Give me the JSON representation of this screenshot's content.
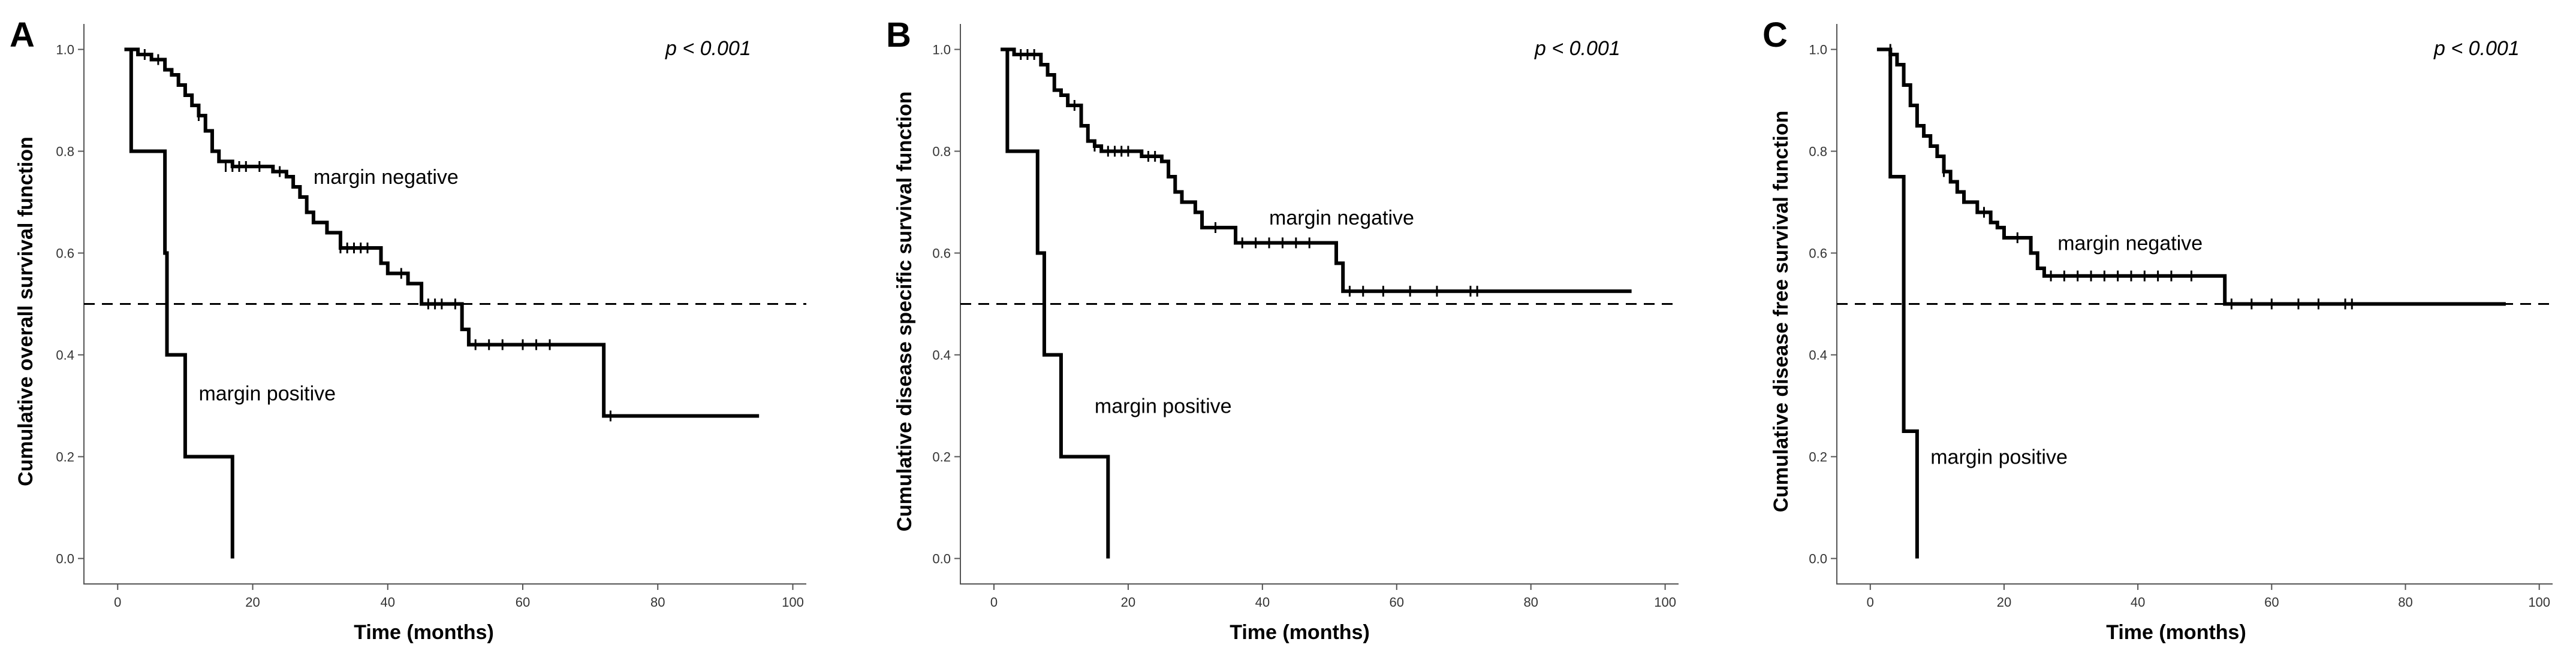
{
  "chart_data": [
    {
      "type": "line",
      "panel": "A",
      "title": "",
      "xlabel": "Time (months)",
      "ylabel": "Cumulative overall survival function",
      "xlim": [
        -5,
        102
      ],
      "ylim": [
        -0.05,
        1.05
      ],
      "xticks": [
        0,
        20,
        40,
        60,
        80,
        100
      ],
      "yticks": [
        0.0,
        0.2,
        0.4,
        0.6,
        0.8,
        1.0
      ],
      "reference_line": 0.5,
      "p_value": "p < 0.001",
      "annotations": [
        {
          "text": "margin negative",
          "x": 29,
          "y": 0.75
        },
        {
          "text": "margin positive",
          "x": 12,
          "y": 0.325
        }
      ],
      "series": [
        {
          "name": "margin negative",
          "steps": [
            [
              1,
              1.0
            ],
            [
              3,
              0.99
            ],
            [
              5,
              0.98
            ],
            [
              7,
              0.96
            ],
            [
              8,
              0.95
            ],
            [
              9,
              0.93
            ],
            [
              10,
              0.91
            ],
            [
              11,
              0.89
            ],
            [
              12,
              0.87
            ],
            [
              13,
              0.84
            ],
            [
              14,
              0.8
            ],
            [
              15,
              0.78
            ],
            [
              17,
              0.77
            ],
            [
              23,
              0.76
            ],
            [
              25,
              0.75
            ],
            [
              26,
              0.73
            ],
            [
              27,
              0.71
            ],
            [
              28,
              0.68
            ],
            [
              29,
              0.66
            ],
            [
              31,
              0.64
            ],
            [
              33,
              0.61
            ],
            [
              39,
              0.58
            ],
            [
              40,
              0.56
            ],
            [
              43,
              0.54
            ],
            [
              45,
              0.5
            ],
            [
              51,
              0.45
            ],
            [
              52,
              0.42
            ],
            [
              72,
              0.28
            ],
            [
              95,
              0.28
            ]
          ],
          "censored": [
            [
              4,
              0.99
            ],
            [
              6,
              0.98
            ],
            [
              12,
              0.87
            ],
            [
              16,
              0.77
            ],
            [
              17,
              0.77
            ],
            [
              18,
              0.77
            ],
            [
              19,
              0.77
            ],
            [
              21,
              0.77
            ],
            [
              24,
              0.76
            ],
            [
              33,
              0.61
            ],
            [
              34,
              0.61
            ],
            [
              35,
              0.61
            ],
            [
              36,
              0.61
            ],
            [
              37,
              0.61
            ],
            [
              39,
              0.6
            ],
            [
              42,
              0.56
            ],
            [
              46,
              0.5
            ],
            [
              47,
              0.5
            ],
            [
              48,
              0.5
            ],
            [
              50,
              0.5
            ],
            [
              53,
              0.42
            ],
            [
              55,
              0.42
            ],
            [
              57,
              0.42
            ],
            [
              60,
              0.42
            ],
            [
              62,
              0.42
            ],
            [
              64,
              0.42
            ],
            [
              73,
              0.28
            ]
          ]
        },
        {
          "name": "margin positive",
          "steps": [
            [
              1,
              1.0
            ],
            [
              2,
              0.8
            ],
            [
              6,
              0.8
            ],
            [
              7,
              0.6
            ],
            [
              7.3,
              0.4
            ],
            [
              10,
              0.2
            ],
            [
              17,
              0.2
            ],
            [
              17,
              0.0
            ]
          ],
          "censored": []
        }
      ]
    },
    {
      "type": "line",
      "panel": "B",
      "title": "",
      "xlabel": "Time (months)",
      "ylabel": "Cumulative disease specific survival function",
      "xlim": [
        -5,
        102
      ],
      "ylim": [
        -0.05,
        1.05
      ],
      "xticks": [
        0,
        20,
        40,
        60,
        80,
        100
      ],
      "yticks": [
        0.0,
        0.2,
        0.4,
        0.6,
        0.8,
        1.0
      ],
      "reference_line": 0.5,
      "p_value": "p < 0.001",
      "annotations": [
        {
          "text": "margin negative",
          "x": 41,
          "y": 0.67
        },
        {
          "text": "margin positive",
          "x": 15,
          "y": 0.3
        }
      ],
      "series": [
        {
          "name": "margin negative",
          "steps": [
            [
              1,
              1.0
            ],
            [
              3,
              0.99
            ],
            [
              7,
              0.97
            ],
            [
              8,
              0.95
            ],
            [
              9,
              0.92
            ],
            [
              10,
              0.91
            ],
            [
              11,
              0.89
            ],
            [
              13,
              0.85
            ],
            [
              14,
              0.82
            ],
            [
              15,
              0.81
            ],
            [
              16,
              0.8
            ],
            [
              22,
              0.79
            ],
            [
              25,
              0.78
            ],
            [
              26,
              0.75
            ],
            [
              27,
              0.72
            ],
            [
              28,
              0.7
            ],
            [
              30,
              0.68
            ],
            [
              31,
              0.65
            ],
            [
              36,
              0.62
            ],
            [
              51,
              0.58
            ],
            [
              52,
              0.525
            ],
            [
              95,
              0.525
            ]
          ],
          "censored": [
            [
              4,
              0.99
            ],
            [
              5,
              0.99
            ],
            [
              6,
              0.99
            ],
            [
              12,
              0.89
            ],
            [
              15,
              0.81
            ],
            [
              17,
              0.8
            ],
            [
              18,
              0.8
            ],
            [
              19,
              0.8
            ],
            [
              20,
              0.8
            ],
            [
              23,
              0.79
            ],
            [
              24,
              0.79
            ],
            [
              33,
              0.65
            ],
            [
              37,
              0.62
            ],
            [
              39,
              0.62
            ],
            [
              41,
              0.62
            ],
            [
              43,
              0.62
            ],
            [
              45,
              0.62
            ],
            [
              47,
              0.62
            ],
            [
              53,
              0.525
            ],
            [
              55,
              0.525
            ],
            [
              58,
              0.525
            ],
            [
              62,
              0.525
            ],
            [
              66,
              0.525
            ],
            [
              71,
              0.525
            ],
            [
              72,
              0.525
            ]
          ]
        },
        {
          "name": "margin positive",
          "steps": [
            [
              1,
              1.0
            ],
            [
              2,
              0.8
            ],
            [
              6,
              0.8
            ],
            [
              6.5,
              0.6
            ],
            [
              7.5,
              0.4
            ],
            [
              10,
              0.2
            ],
            [
              17,
              0.2
            ],
            [
              17,
              0.0
            ]
          ],
          "censored": []
        }
      ]
    },
    {
      "type": "line",
      "panel": "C",
      "title": "",
      "xlabel": "Time (months)",
      "ylabel": "Cumulative disease free survival function",
      "xlim": [
        -5,
        102
      ],
      "ylim": [
        -0.05,
        1.05
      ],
      "xticks": [
        0,
        20,
        40,
        60,
        80,
        100
      ],
      "yticks": [
        0.0,
        0.2,
        0.4,
        0.6,
        0.8,
        1.0
      ],
      "reference_line": 0.5,
      "p_value": "p < 0.001",
      "annotations": [
        {
          "text": "margin negative",
          "x": 28,
          "y": 0.62
        },
        {
          "text": "margin positive",
          "x": 9,
          "y": 0.2
        }
      ],
      "series": [
        {
          "name": "margin negative",
          "steps": [
            [
              1,
              1.0
            ],
            [
              3,
              0.99
            ],
            [
              4,
              0.97
            ],
            [
              5,
              0.93
            ],
            [
              6,
              0.89
            ],
            [
              7,
              0.85
            ],
            [
              8,
              0.83
            ],
            [
              9,
              0.81
            ],
            [
              10,
              0.79
            ],
            [
              11,
              0.76
            ],
            [
              12,
              0.74
            ],
            [
              13,
              0.72
            ],
            [
              14,
              0.7
            ],
            [
              16,
              0.68
            ],
            [
              18,
              0.66
            ],
            [
              19,
              0.65
            ],
            [
              20,
              0.63
            ],
            [
              24,
              0.6
            ],
            [
              25,
              0.57
            ],
            [
              26,
              0.555
            ],
            [
              53,
              0.5
            ],
            [
              95,
              0.5
            ]
          ],
          "censored": [
            [
              3,
              1.0
            ],
            [
              11,
              0.76
            ],
            [
              17,
              0.68
            ],
            [
              22,
              0.63
            ],
            [
              27,
              0.555
            ],
            [
              29,
              0.555
            ],
            [
              31,
              0.555
            ],
            [
              33,
              0.555
            ],
            [
              35,
              0.555
            ],
            [
              37,
              0.555
            ],
            [
              39,
              0.555
            ],
            [
              41,
              0.555
            ],
            [
              43,
              0.555
            ],
            [
              45,
              0.555
            ],
            [
              48,
              0.555
            ],
            [
              54,
              0.5
            ],
            [
              57,
              0.5
            ],
            [
              60,
              0.5
            ],
            [
              64,
              0.5
            ],
            [
              67,
              0.5
            ],
            [
              71,
              0.5
            ],
            [
              72,
              0.5
            ]
          ]
        },
        {
          "name": "margin positive",
          "steps": [
            [
              1,
              1.0
            ],
            [
              3,
              0.75
            ],
            [
              5,
              0.25
            ],
            [
              7,
              0.0
            ]
          ],
          "censored": []
        }
      ]
    }
  ]
}
